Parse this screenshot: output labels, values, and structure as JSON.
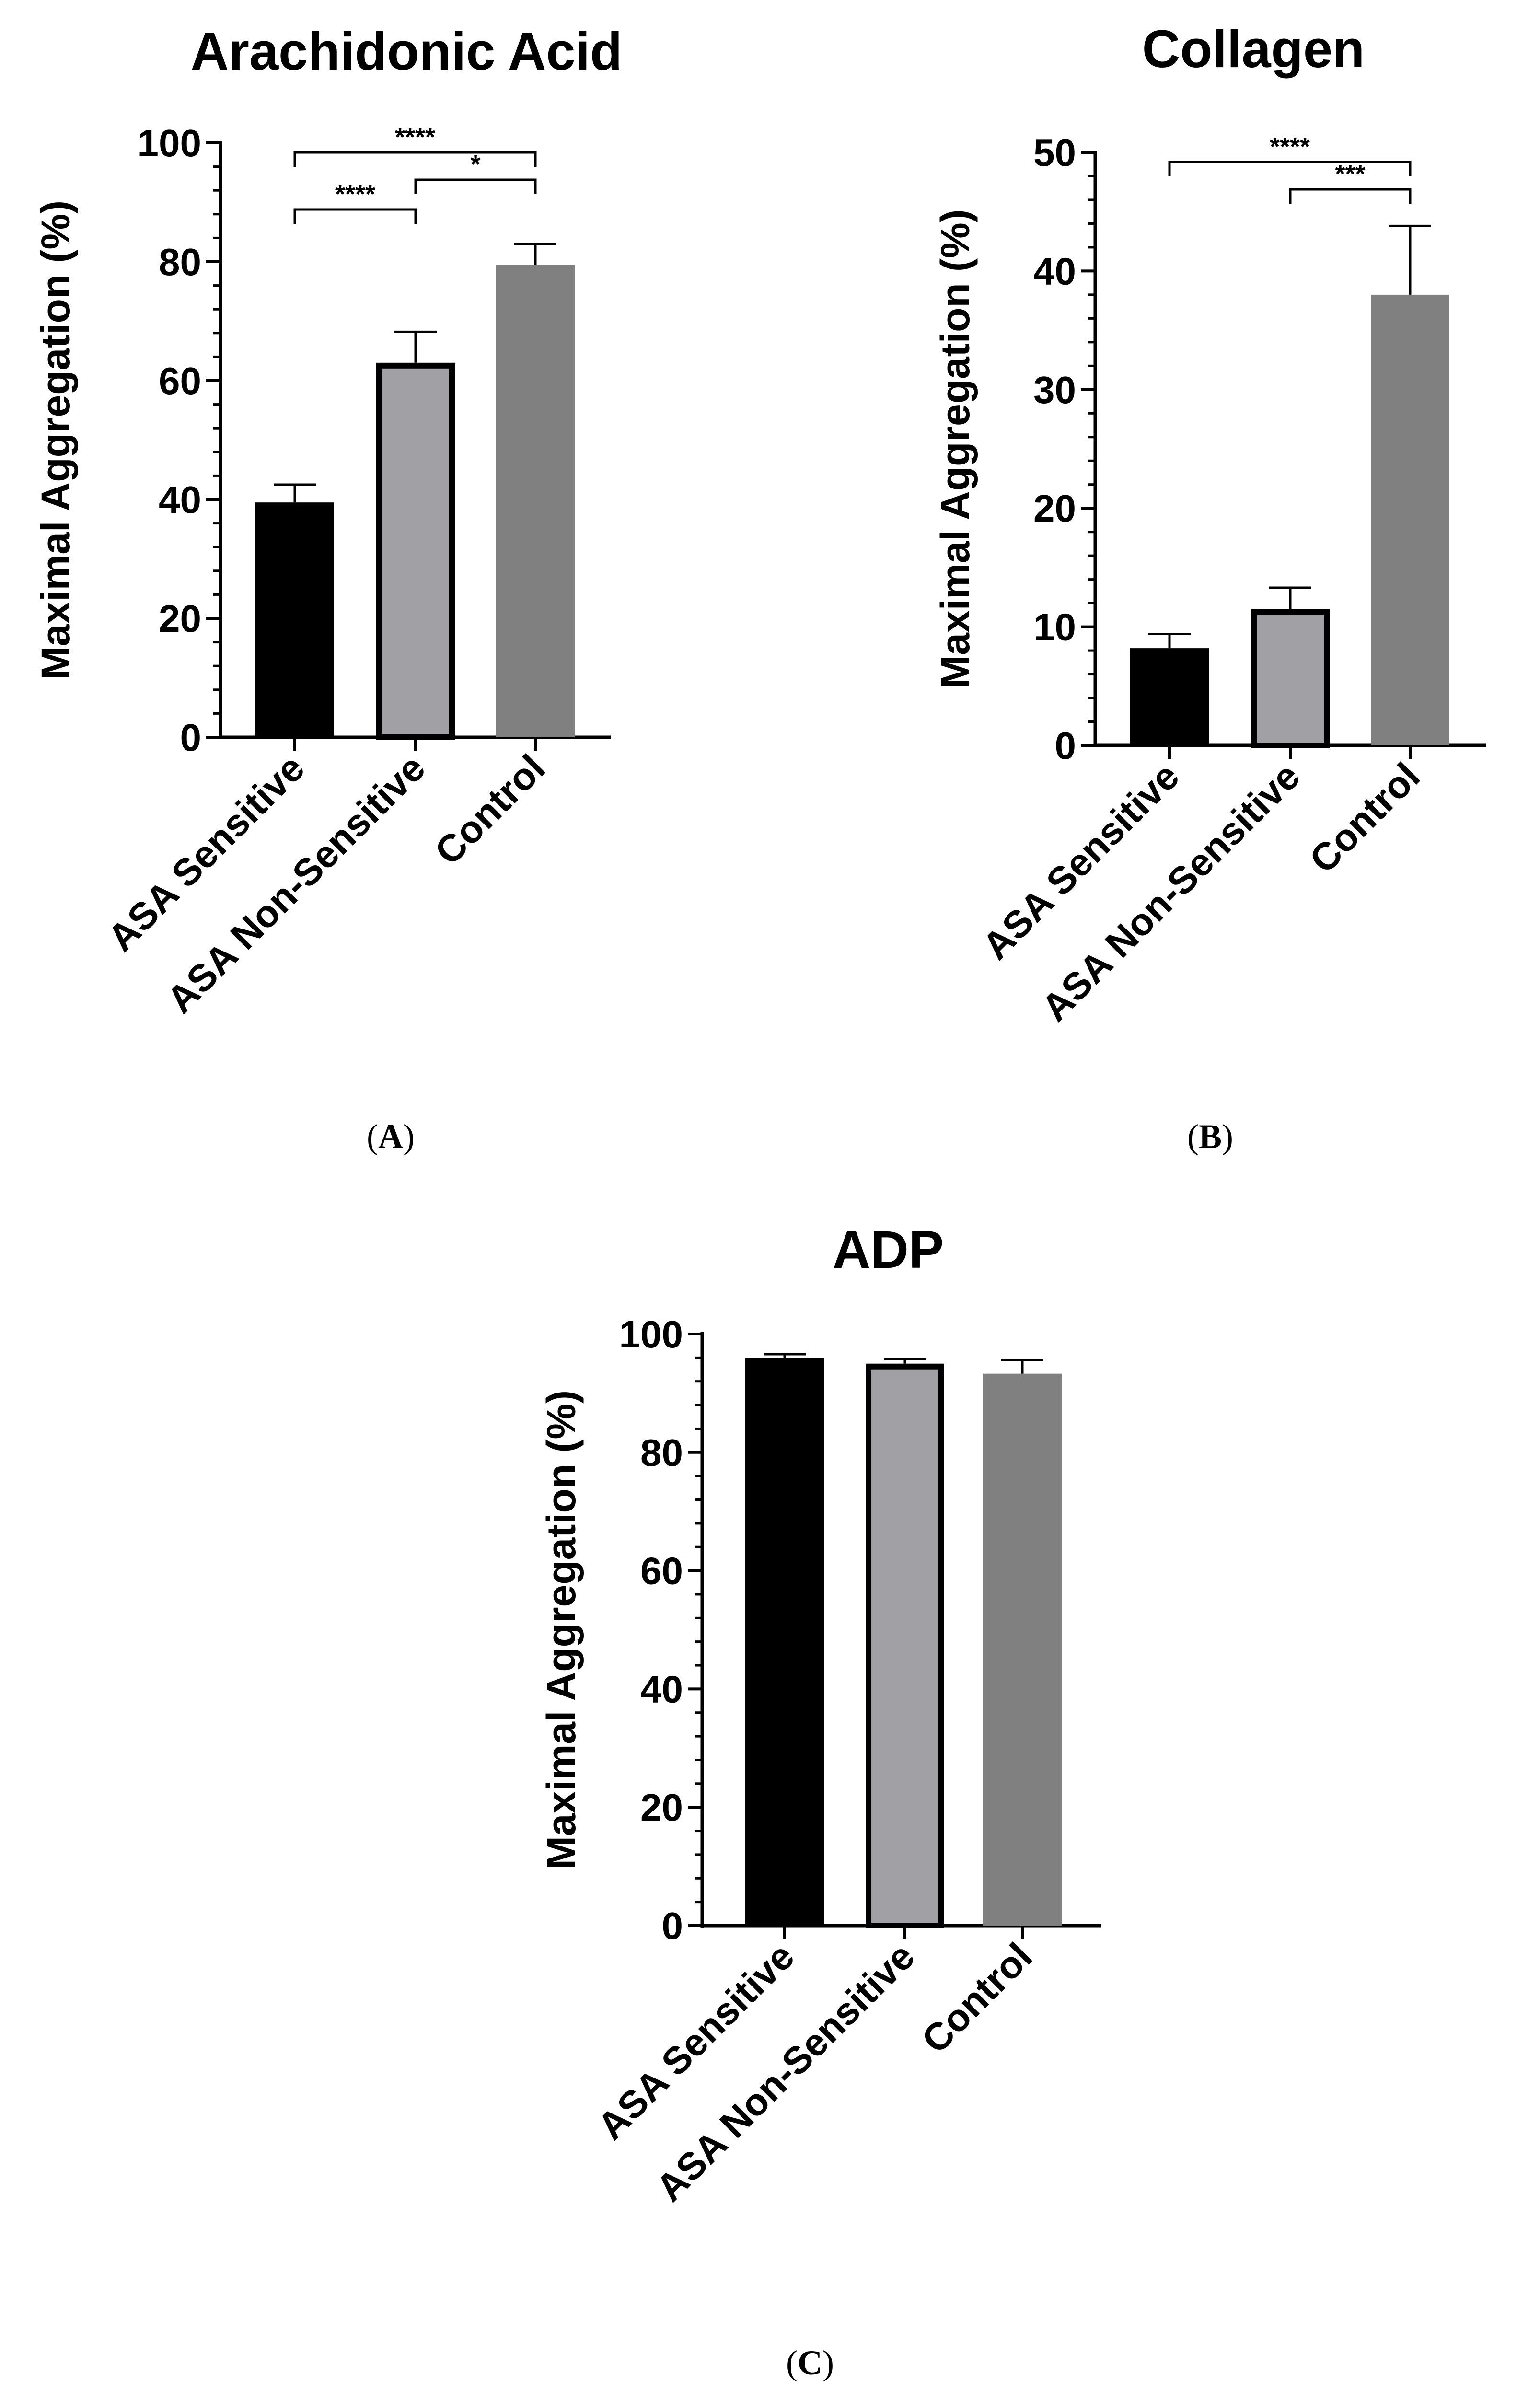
{
  "chart_data": [
    {
      "panel": "(A)",
      "type": "bar",
      "title": "Arachidonic Acid",
      "ylabel": "Maximal Aggregation (%)",
      "xlabel": "",
      "ylim": [
        0,
        100
      ],
      "yticks": [
        "0",
        "20",
        "40",
        "60",
        "80",
        "100"
      ],
      "categories": [
        "ASA Sensitive",
        "ASA Non-Sensitive",
        "Control"
      ],
      "values": [
        39.5,
        63,
        79.5
      ],
      "errors": [
        3,
        5.2,
        3.5
      ],
      "colors": [
        "#000000",
        "#a0a0a5",
        "#808080"
      ],
      "outlined": [
        false,
        true,
        false
      ],
      "significance": [
        {
          "from": 0,
          "to": 2,
          "label": "****"
        },
        {
          "from": 1,
          "to": 2,
          "label": "*"
        },
        {
          "from": 0,
          "to": 1,
          "label": "****"
        }
      ]
    },
    {
      "panel": "(B)",
      "type": "bar",
      "title": "Collagen",
      "ylabel": "Maximal Aggregation (%)",
      "xlabel": "",
      "ylim": [
        0,
        50
      ],
      "yticks": [
        "0",
        "10",
        "20",
        "30",
        "40",
        "50"
      ],
      "categories": [
        "ASA Sensitive",
        "ASA Non-Sensitive",
        "Control"
      ],
      "values": [
        8.2,
        11.5,
        38
      ],
      "errors": [
        1.2,
        1.8,
        5.8
      ],
      "colors": [
        "#000000",
        "#a0a0a5",
        "#808080"
      ],
      "outlined": [
        false,
        true,
        false
      ],
      "significance": [
        {
          "from": 0,
          "to": 2,
          "label": "****"
        },
        {
          "from": 1,
          "to": 2,
          "label": "***"
        }
      ]
    },
    {
      "panel": "(C)",
      "type": "bar",
      "title": "ADP",
      "ylabel": "Maximal Aggregation (%)",
      "xlabel": "",
      "ylim": [
        0,
        100
      ],
      "yticks": [
        "0",
        "20",
        "40",
        "60",
        "80",
        "100"
      ],
      "categories": [
        "ASA Sensitive",
        "ASA Non-Sensitive",
        "Control"
      ],
      "values": [
        96,
        95,
        93.3
      ],
      "errors": [
        0.6,
        0.8,
        2.3
      ],
      "colors": [
        "#000000",
        "#a0a0a5",
        "#808080"
      ],
      "outlined": [
        false,
        true,
        false
      ],
      "significance": []
    }
  ]
}
